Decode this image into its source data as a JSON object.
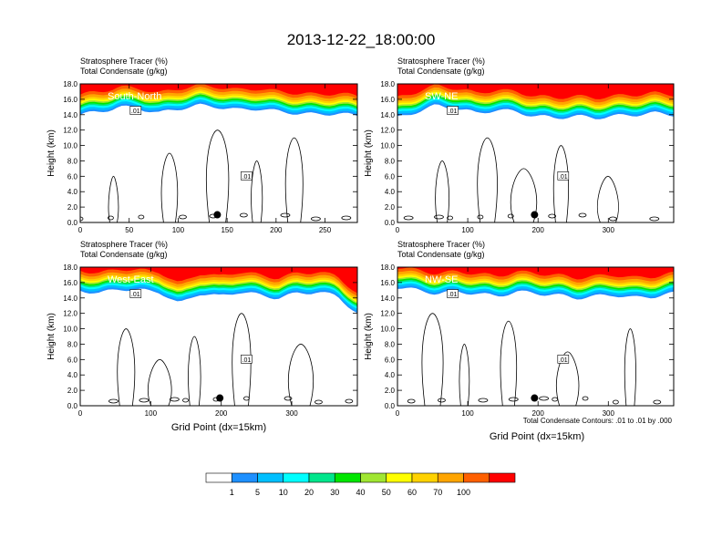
{
  "title": "2013-12-22_18:00:00",
  "panel_label_line1": "Stratosphere Tracer   (%)",
  "panel_label_line2": "Total Condensate   (g/kg)",
  "ylabel": "Height (km)",
  "xlabel": "Grid Point (dx=15km)",
  "contour_note": "Total Condensate Contours: .01 to .01 by .000",
  "contour_label": ".01",
  "colorbar": {
    "levels": [
      "1",
      "5",
      "10",
      "20",
      "30",
      "40",
      "50",
      "60",
      "70",
      "100"
    ],
    "colors": [
      "#ffffff",
      "#1e90ff",
      "#00bfff",
      "#00ffff",
      "#00e68c",
      "#00e600",
      "#a0e632",
      "#ffff00",
      "#ffd200",
      "#ffa500",
      "#ff6000",
      "#ff0000"
    ]
  },
  "chart_data": [
    {
      "type": "heatmap",
      "name": "South-North",
      "ylim": [
        0,
        18
      ],
      "yticks": [
        "0.0",
        "2.0",
        "4.0",
        "6.0",
        "8.0",
        "10.0",
        "12.0",
        "14.0",
        "16.0",
        "18.0"
      ],
      "xlim": [
        0,
        283
      ],
      "xticks": [
        0,
        50,
        100,
        150,
        200,
        250
      ],
      "marker_x": 140,
      "marker_y": 1.0,
      "tropopause_km": [
        14.0,
        14.4,
        15.0,
        14.8,
        14.2,
        14.8,
        15.2,
        15.0,
        14.6,
        14.8,
        14.4,
        14.2,
        14.0,
        14.2,
        13.8
      ]
    },
    {
      "type": "heatmap",
      "name": "SW-NE",
      "ylim": [
        0,
        18
      ],
      "yticks": [
        "0.0",
        "2.0",
        "4.0",
        "6.0",
        "8.0",
        "10.0",
        "12.0",
        "14.0",
        "16.0",
        "18.0"
      ],
      "xlim": [
        0,
        393
      ],
      "xticks": [
        0,
        100,
        200,
        300
      ],
      "marker_x": 195,
      "marker_y": 1.0,
      "tropopause_km": [
        13.6,
        14.4,
        15.2,
        14.8,
        14.2,
        14.6,
        14.4,
        13.8,
        13.6,
        13.8,
        13.6,
        13.8,
        14.0,
        14.2,
        14.0
      ]
    },
    {
      "type": "heatmap",
      "name": "West-East",
      "ylim": [
        0,
        18
      ],
      "yticks": [
        "0.0",
        "2.0",
        "4.0",
        "6.0",
        "8.0",
        "10.0",
        "12.0",
        "14.0",
        "16.0",
        "18.0"
      ],
      "xlim": [
        0,
        393
      ],
      "xticks": [
        0,
        100,
        200,
        300
      ],
      "marker_x": 198,
      "marker_y": 1.0,
      "tropopause_km": [
        15.0,
        14.6,
        15.2,
        15.0,
        14.8,
        13.2,
        14.6,
        14.2,
        14.8,
        14.4,
        14.0,
        14.6,
        14.8,
        14.2,
        12.0
      ]
    },
    {
      "type": "heatmap",
      "name": "NW-SE",
      "ylim": [
        0,
        18
      ],
      "yticks": [
        "0.0",
        "2.0",
        "4.0",
        "6.0",
        "8.0",
        "10.0",
        "12.0",
        "14.0",
        "16.0",
        "18.0"
      ],
      "xlim": [
        0,
        393
      ],
      "xticks": [
        0,
        100,
        200,
        300
      ],
      "marker_x": 195,
      "marker_y": 1.0,
      "tropopause_km": [
        15.4,
        15.0,
        14.6,
        14.8,
        14.6,
        14.2,
        14.8,
        14.6,
        14.4,
        14.0,
        14.2,
        14.4,
        14.0,
        14.2,
        14.6
      ]
    }
  ]
}
